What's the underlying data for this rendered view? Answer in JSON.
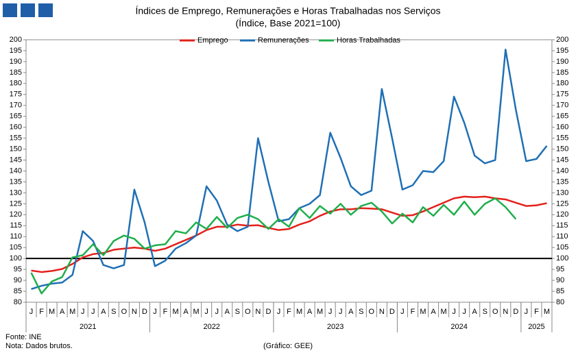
{
  "chart_data": {
    "type": "line",
    "title": "Índices de Emprego, Remunerações e Horas Trabalhadas nos Serviços",
    "subtitle": "(Índice, Base 2021=100)",
    "categories": [
      "J",
      "F",
      "M",
      "A",
      "M",
      "J",
      "J",
      "A",
      "S",
      "O",
      "N",
      "D",
      "J",
      "F",
      "M",
      "A",
      "M",
      "J",
      "J",
      "A",
      "S",
      "O",
      "N",
      "D",
      "J",
      "F",
      "M",
      "A",
      "M",
      "J",
      "J",
      "A",
      "S",
      "O",
      "N",
      "D",
      "J",
      "F",
      "M",
      "A",
      "M",
      "J",
      "J",
      "A",
      "S",
      "O",
      "N",
      "D",
      "J",
      "F",
      "M"
    ],
    "years": [
      "2021",
      "2022",
      "2023",
      "2024",
      "2025"
    ],
    "series": [
      {
        "name": "Emprego",
        "color": "#e3201b",
        "values": [
          94.5,
          93.8,
          94.3,
          95.2,
          97.5,
          100.5,
          102,
          102.5,
          104,
          104.5,
          105,
          104.5,
          103.5,
          104.5,
          106.5,
          108.5,
          110.5,
          113,
          114.5,
          114.5,
          115.5,
          115,
          115.2,
          114,
          113,
          113.5,
          115.5,
          117,
          119.5,
          121.5,
          122.5,
          122.5,
          123,
          122.8,
          122.5,
          121,
          119.5,
          119.8,
          121.5,
          123.5,
          125.5,
          127.5,
          128.3,
          128,
          128.3,
          127.5,
          127,
          125.5,
          124,
          124.3,
          125.3
        ]
      },
      {
        "name": "Remunerações",
        "color": "#1f6fb5",
        "values": [
          86,
          87.5,
          88.5,
          89,
          92.5,
          112.5,
          108,
          97,
          95.5,
          97,
          131.5,
          116.5,
          96.5,
          99,
          104.5,
          107,
          110.5,
          133,
          126.5,
          115.5,
          112.5,
          114.5,
          155,
          135,
          117,
          118,
          123,
          125,
          129,
          157.5,
          146,
          133,
          129,
          131,
          177.5,
          155,
          131.5,
          133.5,
          140,
          139.5,
          144.5,
          174,
          162,
          147,
          143.5,
          145,
          195.5,
          168,
          144.5,
          145.5,
          151.5
        ]
      },
      {
        "name": "Horas Trabalhadas",
        "color": "#1fae4b",
        "values": [
          93.5,
          84,
          89.5,
          91.5,
          100.5,
          101.5,
          106.5,
          101.5,
          108,
          110.5,
          109,
          104.5,
          106,
          106.5,
          112.5,
          111.5,
          116.5,
          113.5,
          119,
          114,
          118.5,
          120,
          118,
          113.5,
          118,
          114.5,
          123,
          118.5,
          124,
          120.5,
          125,
          120,
          124,
          125.5,
          121.5,
          116,
          120.5,
          116.5,
          123.5,
          119.5,
          124.5,
          120,
          126,
          120,
          125,
          127.5,
          123.5,
          118,
          null,
          null,
          null
        ]
      }
    ],
    "reference_line": 100,
    "ylim": [
      80,
      200
    ],
    "yticks": [
      80,
      85,
      90,
      95,
      100,
      105,
      110,
      115,
      120,
      125,
      130,
      135,
      140,
      145,
      150,
      155,
      160,
      165,
      170,
      175,
      180,
      185,
      190,
      195,
      200
    ],
    "y2lim": [
      80,
      200
    ],
    "y2ticks": [
      80,
      85,
      90,
      95,
      100,
      105,
      110,
      115,
      120,
      125,
      130,
      135,
      140,
      145,
      150,
      155,
      160,
      165,
      170,
      175,
      180,
      185,
      190,
      195,
      200
    ],
    "legend": "top",
    "source": "Fonte: INE",
    "note": "Nota: Dados brutos.",
    "credit": "(Gráfico: GEE)"
  }
}
